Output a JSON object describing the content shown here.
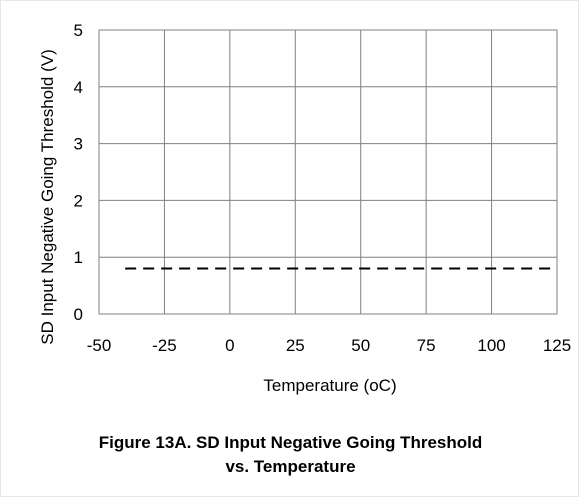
{
  "chart_data": {
    "type": "line",
    "title": "Figure 13A. SD Input Negative Going Threshold",
    "subtitle": "vs. Temperature",
    "xlabel": "Temperature (oC)",
    "ylabel": "SD Input Negative Going Threshold (V)",
    "xlim": [
      -50,
      125
    ],
    "ylim": [
      0,
      5
    ],
    "x_ticks": [
      -50,
      -25,
      0,
      25,
      50,
      75,
      100,
      125
    ],
    "y_ticks": [
      0,
      1,
      2,
      3,
      4,
      5
    ],
    "grid": true,
    "series": [
      {
        "style": "dashed",
        "color": "#000000",
        "x": [
          -40,
          125
        ],
        "y": [
          0.8,
          0.8
        ]
      }
    ]
  }
}
